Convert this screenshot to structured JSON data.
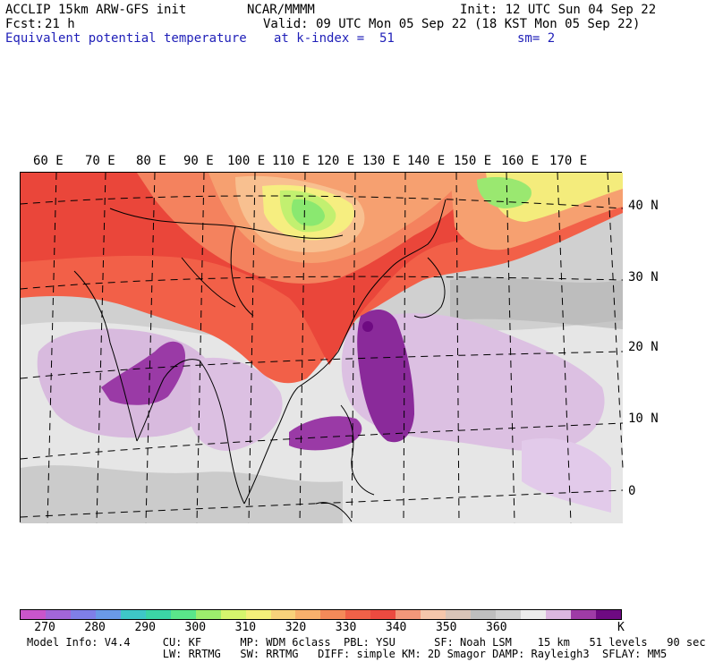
{
  "header": {
    "model_title": "ACCLIP 15km ARW-GFS init",
    "center": "NCAR/MMMM",
    "init": "Init: 12 UTC Sun 04 Sep 22",
    "fcst_label": "Fcst:",
    "fcst_value": "21 h",
    "valid": "Valid: 09 UTC Mon 05 Sep 22 (18 KST Mon 05 Sep 22)",
    "field_name": "Equivalent potential temperature",
    "level": "at k-index =  51",
    "smoothing": "sm= 2"
  },
  "map": {
    "longitude_labels": [
      "60 E",
      "70 E",
      "80 E",
      "90 E",
      "100 E",
      "110 E",
      "120 E",
      "130 E",
      "140 E",
      "150 E",
      "160 E",
      "170 E"
    ],
    "latitude_labels": [
      "40 N",
      "30 N",
      "20 N",
      "10 N",
      "0"
    ],
    "colors": {
      "purple_dark": "#7f1f8f",
      "purple": "#a23dac",
      "lilac": "#d5b6de",
      "light_gray": "#e8e8e8",
      "gray": "#c8c8c8",
      "dark_gray": "#a8a8a8",
      "salmon": "#f08066",
      "red": "#f05a46",
      "red_deep": "#e83c2e",
      "orange": "#f6a070",
      "light_orange": "#f8c090",
      "yellow": "#f8f080",
      "light_green": "#c8f070",
      "green": "#88e870"
    }
  },
  "colorbar": {
    "colors": [
      "#c955cb",
      "#a266d9",
      "#7f7fe8",
      "#6a9ae8",
      "#3ec7c7",
      "#3bd5a6",
      "#5ae68a",
      "#9ded6d",
      "#d5f56d",
      "#f4f07a",
      "#f8d27b",
      "#f8b16c",
      "#f48a59",
      "#f06148",
      "#ec4a40",
      "#f3977a",
      "#f5c6ab",
      "#d9c4b8",
      "#bebebe",
      "#d0d0d0",
      "#ececec",
      "#dcb7e0",
      "#9e3ba6",
      "#6e0a82"
    ],
    "labels": [
      "270",
      "280",
      "290",
      "300",
      "310",
      "320",
      "330",
      "340",
      "350",
      "360"
    ],
    "unit": "K"
  },
  "footer": {
    "line1": "Model Info: V4.4     CU: KF      MP: WDM 6class  PBL: YSU      SF: Noah LSM    15 km   51 levels   90 sec",
    "line2": "                     LW: RRTMG   SW: RRTMG   DIFF: simple KM: 2D Smagor DAMP: Rayleigh3  SFLAY: MM5"
  }
}
